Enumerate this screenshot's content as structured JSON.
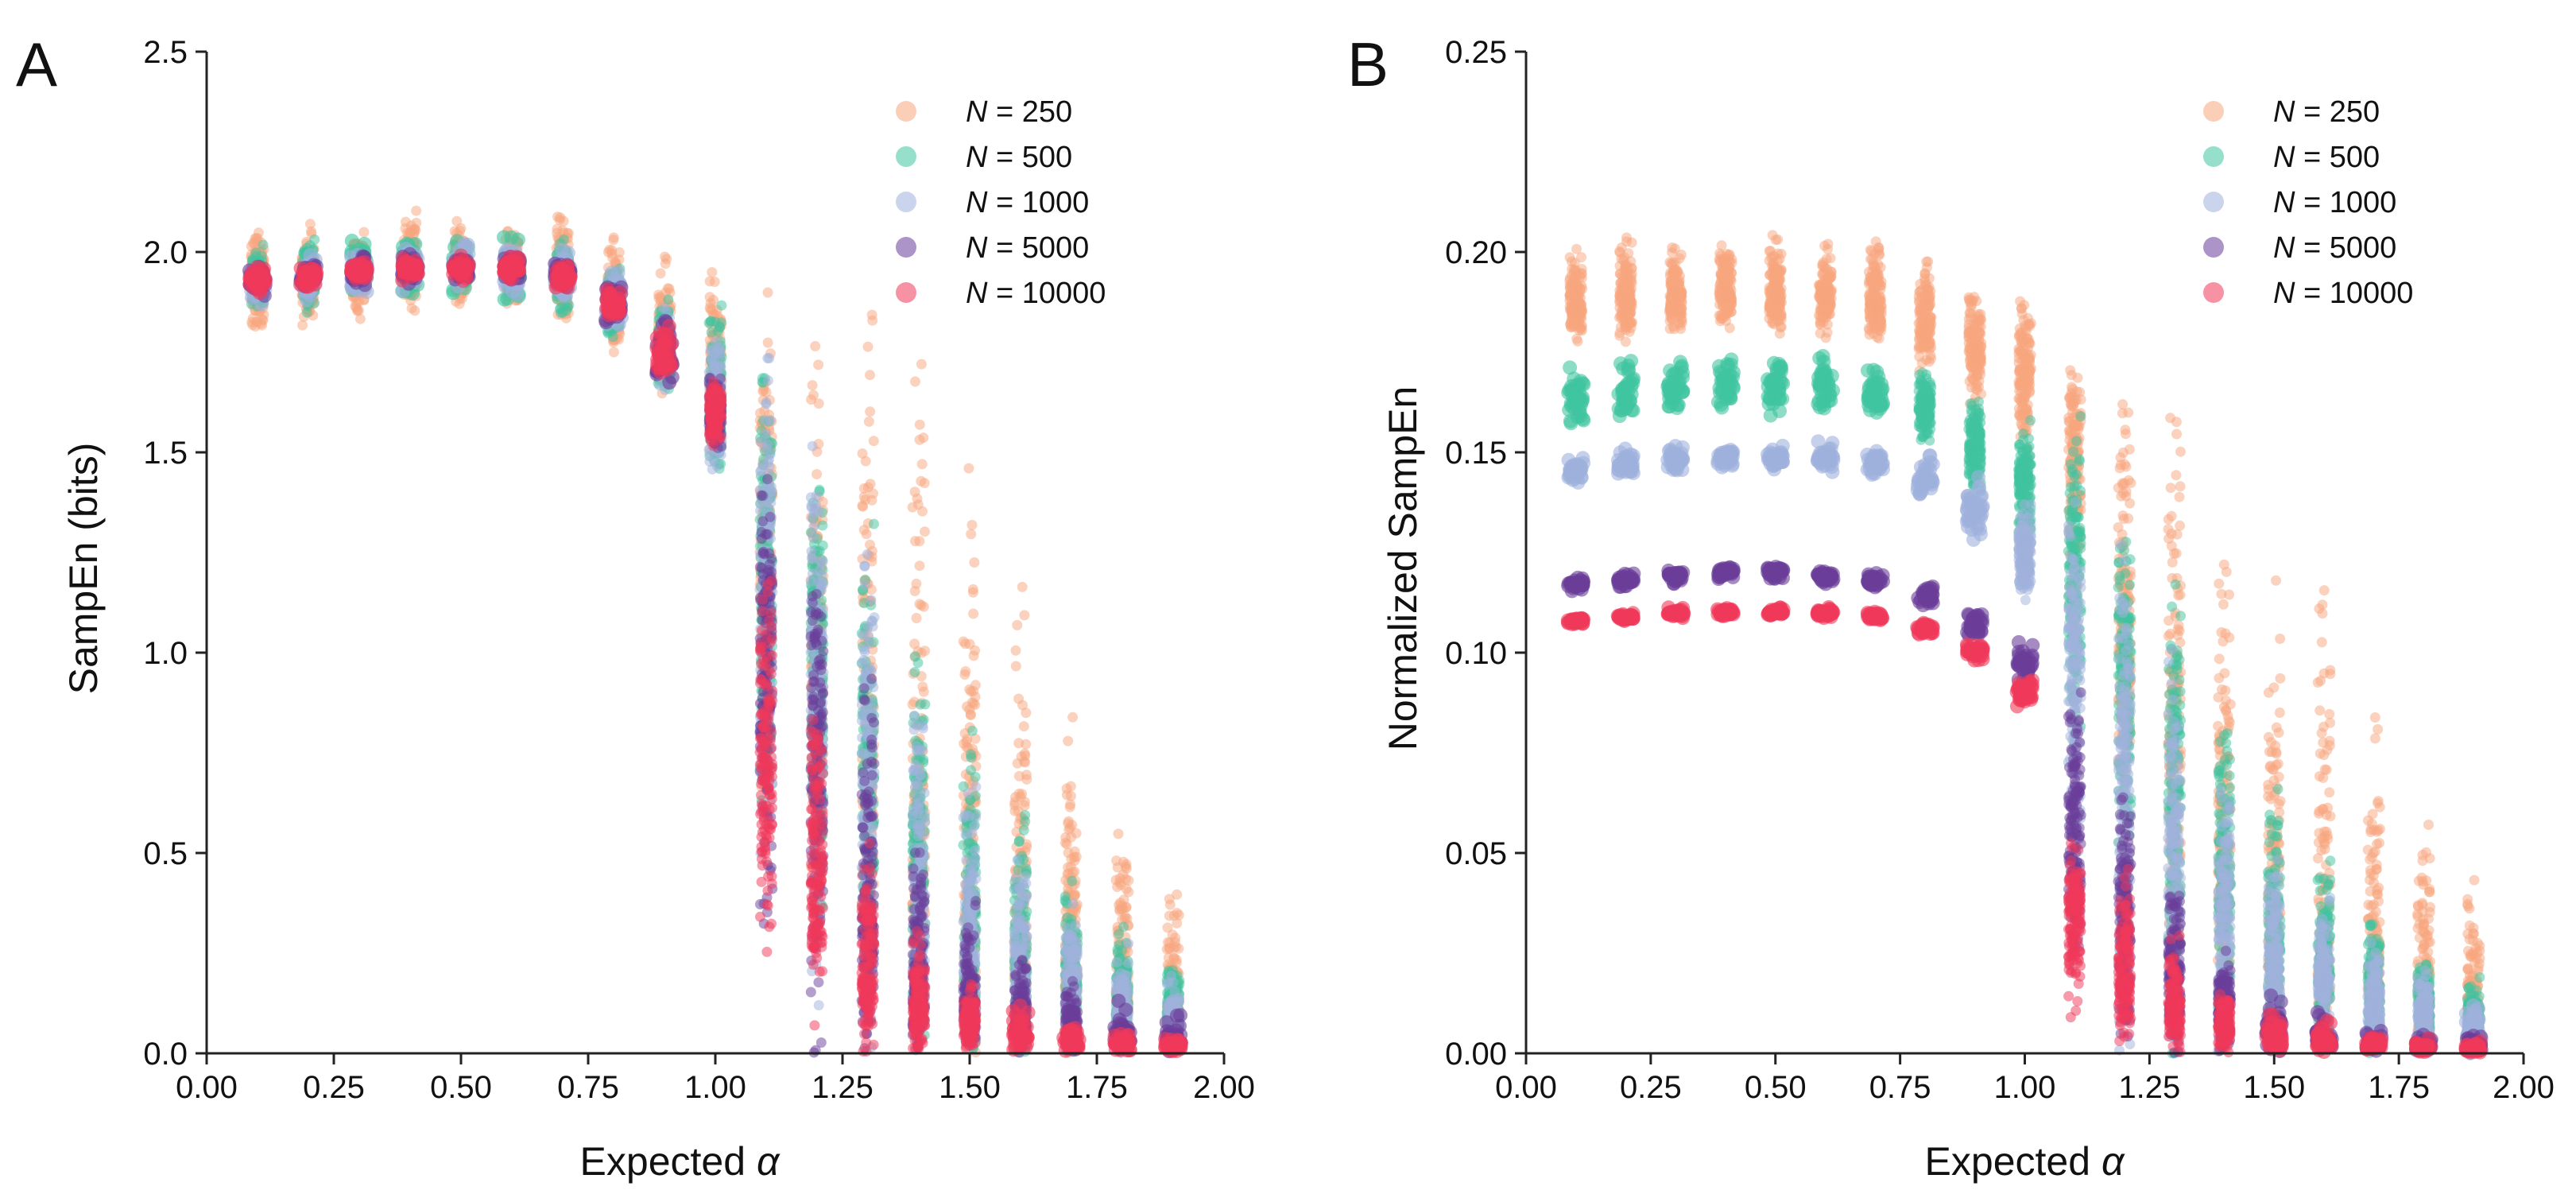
{
  "chart_data": [
    {
      "type": "scatter",
      "panel": "A",
      "xlabel": "Expected",
      "xlabel_symbol": "α",
      "ylabel": "SampEn (bits)",
      "xlim": [
        0,
        2
      ],
      "ylim": [
        0,
        2.5
      ],
      "xticks": [
        "0.00",
        "0.25",
        "0.50",
        "0.75",
        "1.00",
        "1.25",
        "1.50",
        "1.75",
        "2.00"
      ],
      "yticks": [
        "0.0",
        "0.5",
        "1.0",
        "1.5",
        "2.0",
        "2.5"
      ],
      "legend_position": "top-right",
      "x": [
        0.1,
        0.2,
        0.3,
        0.4,
        0.5,
        0.6,
        0.7,
        0.8,
        0.9,
        1.0,
        1.1,
        1.2,
        1.3,
        1.4,
        1.5,
        1.6,
        1.7,
        1.8,
        1.9
      ],
      "series": [
        {
          "prefix": "N",
          "label": " = 250",
          "color": "#f8a57e",
          "center": [
            1.93,
            1.94,
            1.95,
            1.96,
            1.96,
            1.96,
            1.94,
            1.88,
            1.78,
            1.68,
            1.25,
            1.0,
            0.75,
            0.55,
            0.4,
            0.3,
            0.22,
            0.16,
            0.12
          ],
          "spread_low": [
            0.12,
            0.1,
            0.09,
            0.09,
            0.08,
            0.08,
            0.09,
            0.1,
            0.12,
            0.14,
            0.45,
            0.5,
            0.45,
            0.4,
            0.32,
            0.25,
            0.18,
            0.14,
            0.1
          ],
          "spread_high": [
            0.11,
            0.1,
            0.09,
            0.11,
            0.09,
            0.08,
            0.14,
            0.12,
            0.16,
            0.22,
            0.5,
            0.62,
            0.85,
            0.9,
            0.88,
            0.82,
            0.5,
            0.4,
            0.26
          ]
        },
        {
          "prefix": "N",
          "label": " = 500",
          "color": "#40c4a0",
          "center": [
            1.93,
            1.94,
            1.95,
            1.96,
            1.96,
            1.96,
            1.94,
            1.87,
            1.76,
            1.65,
            1.2,
            0.95,
            0.7,
            0.5,
            0.35,
            0.25,
            0.18,
            0.13,
            0.1
          ],
          "spread_low": [
            0.07,
            0.07,
            0.06,
            0.06,
            0.06,
            0.06,
            0.07,
            0.08,
            0.1,
            0.2,
            0.5,
            0.55,
            0.45,
            0.38,
            0.3,
            0.22,
            0.15,
            0.11,
            0.08
          ],
          "spread_high": [
            0.07,
            0.07,
            0.06,
            0.06,
            0.06,
            0.06,
            0.07,
            0.08,
            0.1,
            0.18,
            0.42,
            0.45,
            0.5,
            0.45,
            0.35,
            0.3,
            0.2,
            0.15,
            0.12
          ]
        },
        {
          "prefix": "N",
          "label": " = 1000",
          "color": "#9fb1dc",
          "center": [
            1.93,
            1.94,
            1.95,
            1.96,
            1.96,
            1.96,
            1.94,
            1.87,
            1.76,
            1.62,
            1.15,
            0.9,
            0.6,
            0.4,
            0.28,
            0.2,
            0.14,
            0.1,
            0.07
          ],
          "spread_low": [
            0.05,
            0.05,
            0.05,
            0.05,
            0.05,
            0.05,
            0.05,
            0.06,
            0.08,
            0.15,
            0.5,
            0.6,
            0.45,
            0.35,
            0.25,
            0.18,
            0.12,
            0.09,
            0.06
          ],
          "spread_high": [
            0.05,
            0.05,
            0.05,
            0.05,
            0.05,
            0.05,
            0.05,
            0.06,
            0.08,
            0.14,
            0.45,
            0.5,
            0.55,
            0.45,
            0.32,
            0.25,
            0.18,
            0.14,
            0.1
          ]
        },
        {
          "prefix": "N",
          "label": " = 5000",
          "color": "#6a3d9a",
          "center": [
            1.93,
            1.94,
            1.95,
            1.96,
            1.96,
            1.96,
            1.94,
            1.87,
            1.75,
            1.6,
            1.0,
            0.7,
            0.35,
            0.2,
            0.12,
            0.08,
            0.05,
            0.04,
            0.03
          ],
          "spread_low": [
            0.03,
            0.03,
            0.03,
            0.03,
            0.03,
            0.03,
            0.03,
            0.04,
            0.06,
            0.08,
            0.65,
            0.6,
            0.3,
            0.18,
            0.1,
            0.06,
            0.04,
            0.03,
            0.02
          ],
          "spread_high": [
            0.03,
            0.03,
            0.03,
            0.03,
            0.03,
            0.03,
            0.03,
            0.04,
            0.06,
            0.08,
            0.35,
            0.5,
            0.55,
            0.35,
            0.2,
            0.14,
            0.1,
            0.07,
            0.05
          ]
        },
        {
          "prefix": "N",
          "label": " = 10000",
          "color": "#f0385a",
          "center": [
            1.93,
            1.94,
            1.95,
            1.96,
            1.96,
            1.96,
            1.94,
            1.87,
            1.75,
            1.6,
            0.75,
            0.45,
            0.2,
            0.12,
            0.07,
            0.05,
            0.03,
            0.02,
            0.015
          ],
          "spread_low": [
            0.025,
            0.025,
            0.025,
            0.025,
            0.025,
            0.025,
            0.025,
            0.03,
            0.05,
            0.07,
            0.45,
            0.3,
            0.15,
            0.1,
            0.06,
            0.04,
            0.025,
            0.015,
            0.01
          ],
          "spread_high": [
            0.025,
            0.025,
            0.025,
            0.025,
            0.025,
            0.025,
            0.025,
            0.03,
            0.05,
            0.07,
            0.45,
            0.4,
            0.25,
            0.15,
            0.08,
            0.06,
            0.04,
            0.03,
            0.02
          ]
        }
      ]
    },
    {
      "type": "scatter",
      "panel": "B",
      "xlabel": "Expected",
      "xlabel_symbol": "α",
      "ylabel": "Normalized SampEn",
      "xlim": [
        0,
        2
      ],
      "ylim": [
        0,
        0.25
      ],
      "xticks": [
        "0.00",
        "0.25",
        "0.50",
        "0.75",
        "1.00",
        "1.25",
        "1.50",
        "1.75",
        "2.00"
      ],
      "yticks": [
        "0.00",
        "0.05",
        "0.10",
        "0.15",
        "0.20",
        "0.25"
      ],
      "legend_position": "top-right",
      "x": [
        0.1,
        0.2,
        0.3,
        0.4,
        0.5,
        0.6,
        0.7,
        0.8,
        0.9,
        1.0,
        1.1,
        1.2,
        1.3,
        1.4,
        1.5,
        1.6,
        1.7,
        1.8,
        1.9
      ],
      "series": [
        {
          "prefix": "N",
          "label": " = 250",
          "color": "#f8a57e",
          "center": [
            0.187,
            0.188,
            0.189,
            0.19,
            0.19,
            0.189,
            0.187,
            0.182,
            0.176,
            0.168,
            0.15,
            0.11,
            0.08,
            0.055,
            0.04,
            0.03,
            0.02,
            0.015,
            0.012
          ],
          "spread_low": [
            0.008,
            0.008,
            0.008,
            0.008,
            0.008,
            0.008,
            0.008,
            0.009,
            0.012,
            0.015,
            0.035,
            0.05,
            0.05,
            0.04,
            0.032,
            0.025,
            0.018,
            0.013,
            0.01
          ],
          "spread_high": [
            0.011,
            0.012,
            0.011,
            0.012,
            0.011,
            0.01,
            0.014,
            0.012,
            0.013,
            0.016,
            0.02,
            0.05,
            0.078,
            0.066,
            0.06,
            0.08,
            0.05,
            0.037,
            0.025
          ]
        },
        {
          "prefix": "N",
          "label": " = 500",
          "color": "#40c4a0",
          "center": [
            0.164,
            0.165,
            0.166,
            0.167,
            0.167,
            0.167,
            0.165,
            0.161,
            0.152,
            0.143,
            0.12,
            0.09,
            0.065,
            0.045,
            0.032,
            0.024,
            0.016,
            0.012,
            0.009
          ],
          "spread_low": [
            0.006,
            0.006,
            0.006,
            0.006,
            0.006,
            0.006,
            0.006,
            0.007,
            0.01,
            0.015,
            0.04,
            0.05,
            0.05,
            0.038,
            0.028,
            0.02,
            0.014,
            0.01,
            0.008
          ],
          "spread_high": [
            0.006,
            0.006,
            0.006,
            0.006,
            0.006,
            0.006,
            0.006,
            0.007,
            0.01,
            0.012,
            0.03,
            0.035,
            0.04,
            0.035,
            0.028,
            0.02,
            0.014,
            0.01,
            0.008
          ]
        },
        {
          "prefix": "N",
          "label": " = 1000",
          "color": "#9fb1dc",
          "center": [
            0.146,
            0.147,
            0.148,
            0.149,
            0.149,
            0.149,
            0.147,
            0.143,
            0.136,
            0.124,
            0.1,
            0.075,
            0.05,
            0.035,
            0.025,
            0.018,
            0.012,
            0.009,
            0.006
          ],
          "spread_low": [
            0.003,
            0.003,
            0.003,
            0.003,
            0.003,
            0.003,
            0.003,
            0.005,
            0.006,
            0.01,
            0.05,
            0.06,
            0.045,
            0.03,
            0.022,
            0.016,
            0.01,
            0.008,
            0.005
          ],
          "spread_high": [
            0.003,
            0.003,
            0.003,
            0.003,
            0.003,
            0.003,
            0.003,
            0.005,
            0.006,
            0.01,
            0.03,
            0.04,
            0.04,
            0.03,
            0.022,
            0.016,
            0.012,
            0.009,
            0.006
          ]
        },
        {
          "prefix": "N",
          "label": " = 5000",
          "color": "#6a3d9a",
          "center": [
            0.117,
            0.118,
            0.119,
            0.12,
            0.12,
            0.119,
            0.118,
            0.114,
            0.107,
            0.098,
            0.06,
            0.035,
            0.02,
            0.01,
            0.006,
            0.004,
            0.003,
            0.002,
            0.002
          ],
          "spread_low": [
            0.0015,
            0.0015,
            0.0015,
            0.0015,
            0.0015,
            0.0015,
            0.0015,
            0.002,
            0.003,
            0.004,
            0.035,
            0.03,
            0.018,
            0.009,
            0.005,
            0.003,
            0.002,
            0.0015,
            0.0015
          ],
          "spread_high": [
            0.0015,
            0.0015,
            0.0015,
            0.0015,
            0.0015,
            0.0015,
            0.0015,
            0.002,
            0.003,
            0.004,
            0.025,
            0.025,
            0.02,
            0.012,
            0.007,
            0.005,
            0.003,
            0.002,
            0.002
          ]
        },
        {
          "prefix": "N",
          "label": " = 10000",
          "color": "#f0385a",
          "center": [
            0.108,
            0.109,
            0.11,
            0.11,
            0.11,
            0.11,
            0.109,
            0.106,
            0.1,
            0.09,
            0.035,
            0.02,
            0.012,
            0.007,
            0.004,
            0.003,
            0.002,
            0.0015,
            0.001
          ],
          "spread_low": [
            0.001,
            0.001,
            0.001,
            0.001,
            0.001,
            0.001,
            0.001,
            0.0015,
            0.002,
            0.003,
            0.02,
            0.015,
            0.01,
            0.006,
            0.003,
            0.002,
            0.0015,
            0.001,
            0.001
          ],
          "spread_high": [
            0.001,
            0.001,
            0.001,
            0.001,
            0.001,
            0.001,
            0.001,
            0.0015,
            0.002,
            0.003,
            0.015,
            0.02,
            0.015,
            0.008,
            0.005,
            0.004,
            0.003,
            0.002,
            0.0015
          ]
        }
      ]
    }
  ]
}
